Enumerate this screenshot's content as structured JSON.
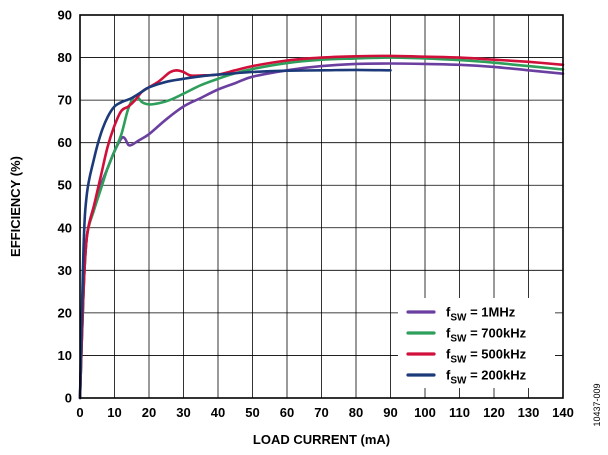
{
  "chart_data": {
    "type": "line",
    "xlabel": "LOAD CURRENT (mA)",
    "ylabel": "EFFICIENCY (%)",
    "xlim": [
      0,
      140
    ],
    "ylim": [
      0,
      90
    ],
    "x_ticks": [
      0,
      10,
      20,
      30,
      40,
      50,
      60,
      70,
      80,
      90,
      100,
      110,
      120,
      130,
      140
    ],
    "y_ticks": [
      0,
      10,
      20,
      30,
      40,
      50,
      60,
      70,
      80,
      90
    ],
    "grid": true,
    "legend_position": "bottom-right",
    "series": [
      {
        "name_main": "f",
        "name_sub": "SW",
        "name_rest": " = 1MHz",
        "color": "#6b3fa0",
        "points": [
          [
            0,
            0
          ],
          [
            1,
            25
          ],
          [
            2,
            38
          ],
          [
            4,
            45
          ],
          [
            6,
            50
          ],
          [
            8,
            54
          ],
          [
            10,
            58
          ],
          [
            12,
            61
          ],
          [
            13,
            61
          ],
          [
            14,
            59.5
          ],
          [
            15,
            59.5
          ],
          [
            17,
            60.5
          ],
          [
            20,
            62
          ],
          [
            25,
            65.5
          ],
          [
            30,
            68.5
          ],
          [
            35,
            70.5
          ],
          [
            40,
            72.5
          ],
          [
            45,
            74
          ],
          [
            50,
            75.5
          ],
          [
            60,
            77
          ],
          [
            70,
            78
          ],
          [
            80,
            78.5
          ],
          [
            90,
            78.6
          ],
          [
            100,
            78.5
          ],
          [
            110,
            78.3
          ],
          [
            120,
            77.8
          ],
          [
            130,
            77
          ],
          [
            140,
            76.2
          ]
        ]
      },
      {
        "name_main": "f",
        "name_sub": "SW",
        "name_rest": " = 700kHz",
        "color": "#2e9e5b",
        "points": [
          [
            0,
            0
          ],
          [
            1,
            25
          ],
          [
            2,
            38
          ],
          [
            4,
            44
          ],
          [
            6,
            49
          ],
          [
            8,
            54
          ],
          [
            10,
            58
          ],
          [
            12,
            62
          ],
          [
            14,
            68
          ],
          [
            16,
            71
          ],
          [
            18,
            69.5
          ],
          [
            20,
            69
          ],
          [
            23,
            69.3
          ],
          [
            26,
            70
          ],
          [
            30,
            71.5
          ],
          [
            35,
            73.5
          ],
          [
            40,
            75
          ],
          [
            45,
            76.3
          ],
          [
            50,
            77.3
          ],
          [
            60,
            78.7
          ],
          [
            70,
            79.5
          ],
          [
            80,
            79.8
          ],
          [
            90,
            80
          ],
          [
            100,
            79.8
          ],
          [
            110,
            79.4
          ],
          [
            120,
            78.8
          ],
          [
            130,
            78
          ],
          [
            140,
            77.2
          ]
        ]
      },
      {
        "name_main": "f",
        "name_sub": "SW",
        "name_rest": " = 500kHz",
        "color": "#d0103a",
        "points": [
          [
            0,
            0
          ],
          [
            1,
            25
          ],
          [
            2,
            38
          ],
          [
            4,
            45
          ],
          [
            6,
            52
          ],
          [
            8,
            59
          ],
          [
            10,
            64
          ],
          [
            12,
            67.5
          ],
          [
            14,
            68.5
          ],
          [
            16,
            70
          ],
          [
            18,
            72
          ],
          [
            20,
            73
          ],
          [
            23,
            74.5
          ],
          [
            26,
            76.5
          ],
          [
            28,
            77
          ],
          [
            30,
            76.6
          ],
          [
            32,
            75.8
          ],
          [
            35,
            75.8
          ],
          [
            40,
            76
          ],
          [
            45,
            77
          ],
          [
            50,
            78
          ],
          [
            60,
            79.3
          ],
          [
            70,
            80
          ],
          [
            80,
            80.3
          ],
          [
            90,
            80.4
          ],
          [
            100,
            80.2
          ],
          [
            110,
            80
          ],
          [
            120,
            79.5
          ],
          [
            130,
            79
          ],
          [
            140,
            78.3
          ]
        ]
      },
      {
        "name_main": "f",
        "name_sub": "SW",
        "name_rest": " = 200kHz",
        "color": "#1c3a7a",
        "points": [
          [
            0,
            0
          ],
          [
            1,
            35
          ],
          [
            2,
            48
          ],
          [
            4,
            56
          ],
          [
            6,
            62
          ],
          [
            8,
            66
          ],
          [
            10,
            68.5
          ],
          [
            12,
            69.5
          ],
          [
            15,
            70.5
          ],
          [
            18,
            72
          ],
          [
            20,
            73
          ],
          [
            25,
            74.3
          ],
          [
            30,
            75
          ],
          [
            35,
            75.6
          ],
          [
            40,
            76
          ],
          [
            50,
            76.6
          ],
          [
            60,
            76.9
          ],
          [
            70,
            77
          ],
          [
            80,
            77.1
          ],
          [
            90,
            77
          ]
        ]
      }
    ]
  },
  "figure_id": "10437-009"
}
